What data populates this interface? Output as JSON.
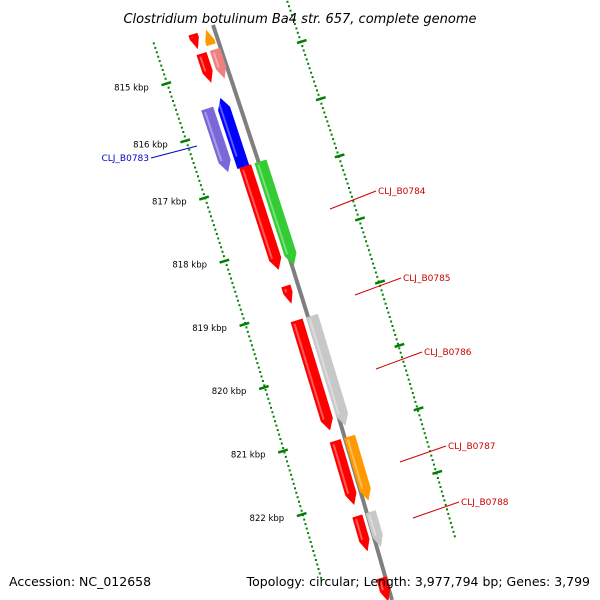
{
  "title": "Clostridium botulinum Ba4 str. 657, complete genome",
  "accession": "Accession: NC_012658",
  "summary": "Topology: circular; Length: 3,977,794 bp; Genes: 3,799",
  "colors": {
    "backbone": "#7f7f7f",
    "tick": "#007f00",
    "red": "#ff0000",
    "blue": "#0000ff",
    "purple": "#7b68d8",
    "green": "#33cc33",
    "gray": "#c8c8c8",
    "orange": "#ff9900",
    "pink": "#f08080",
    "label_red": "#cc0000",
    "label_blue": "#0000cc"
  },
  "ticks": [
    "815 kbp",
    "816 kbp",
    "817 kbp",
    "818 kbp",
    "819 kbp",
    "820 kbp",
    "821 kbp",
    "822 kbp"
  ],
  "features": [
    {
      "color": "red",
      "ring": "inner",
      "name": "",
      "label_color": ""
    },
    {
      "color": "orange",
      "ring": "outer",
      "name": "",
      "label_color": ""
    },
    {
      "color": "red",
      "ring": "inner",
      "name": "",
      "label_color": ""
    },
    {
      "color": "pink",
      "ring": "outer",
      "name": "",
      "label_color": ""
    },
    {
      "color": "purple",
      "ring": "inner",
      "name": "",
      "label_color": ""
    },
    {
      "color": "blue",
      "ring": "outer",
      "name": "CLJ_B0783",
      "label_color": "label_blue"
    },
    {
      "color": "red",
      "ring": "inner",
      "name": "",
      "label_color": ""
    },
    {
      "color": "green",
      "ring": "outer",
      "name": "CLJ_B0784",
      "label_color": "label_red"
    },
    {
      "color": "red",
      "ring": "inner",
      "name": "CLJ_B0785",
      "label_color": "label_red"
    },
    {
      "color": "red",
      "ring": "inner",
      "name": "",
      "label_color": ""
    },
    {
      "color": "gray",
      "ring": "outer",
      "name": "CLJ_B0786",
      "label_color": "label_red"
    },
    {
      "color": "red",
      "ring": "inner",
      "name": "",
      "label_color": ""
    },
    {
      "color": "orange",
      "ring": "outer",
      "name": "CLJ_B0787",
      "label_color": "label_red"
    },
    {
      "color": "red",
      "ring": "inner",
      "name": "",
      "label_color": ""
    },
    {
      "color": "gray",
      "ring": "outer",
      "name": "CLJ_B0788",
      "label_color": "label_red"
    },
    {
      "color": "red",
      "ring": "inner",
      "name": "",
      "label_color": ""
    }
  ]
}
